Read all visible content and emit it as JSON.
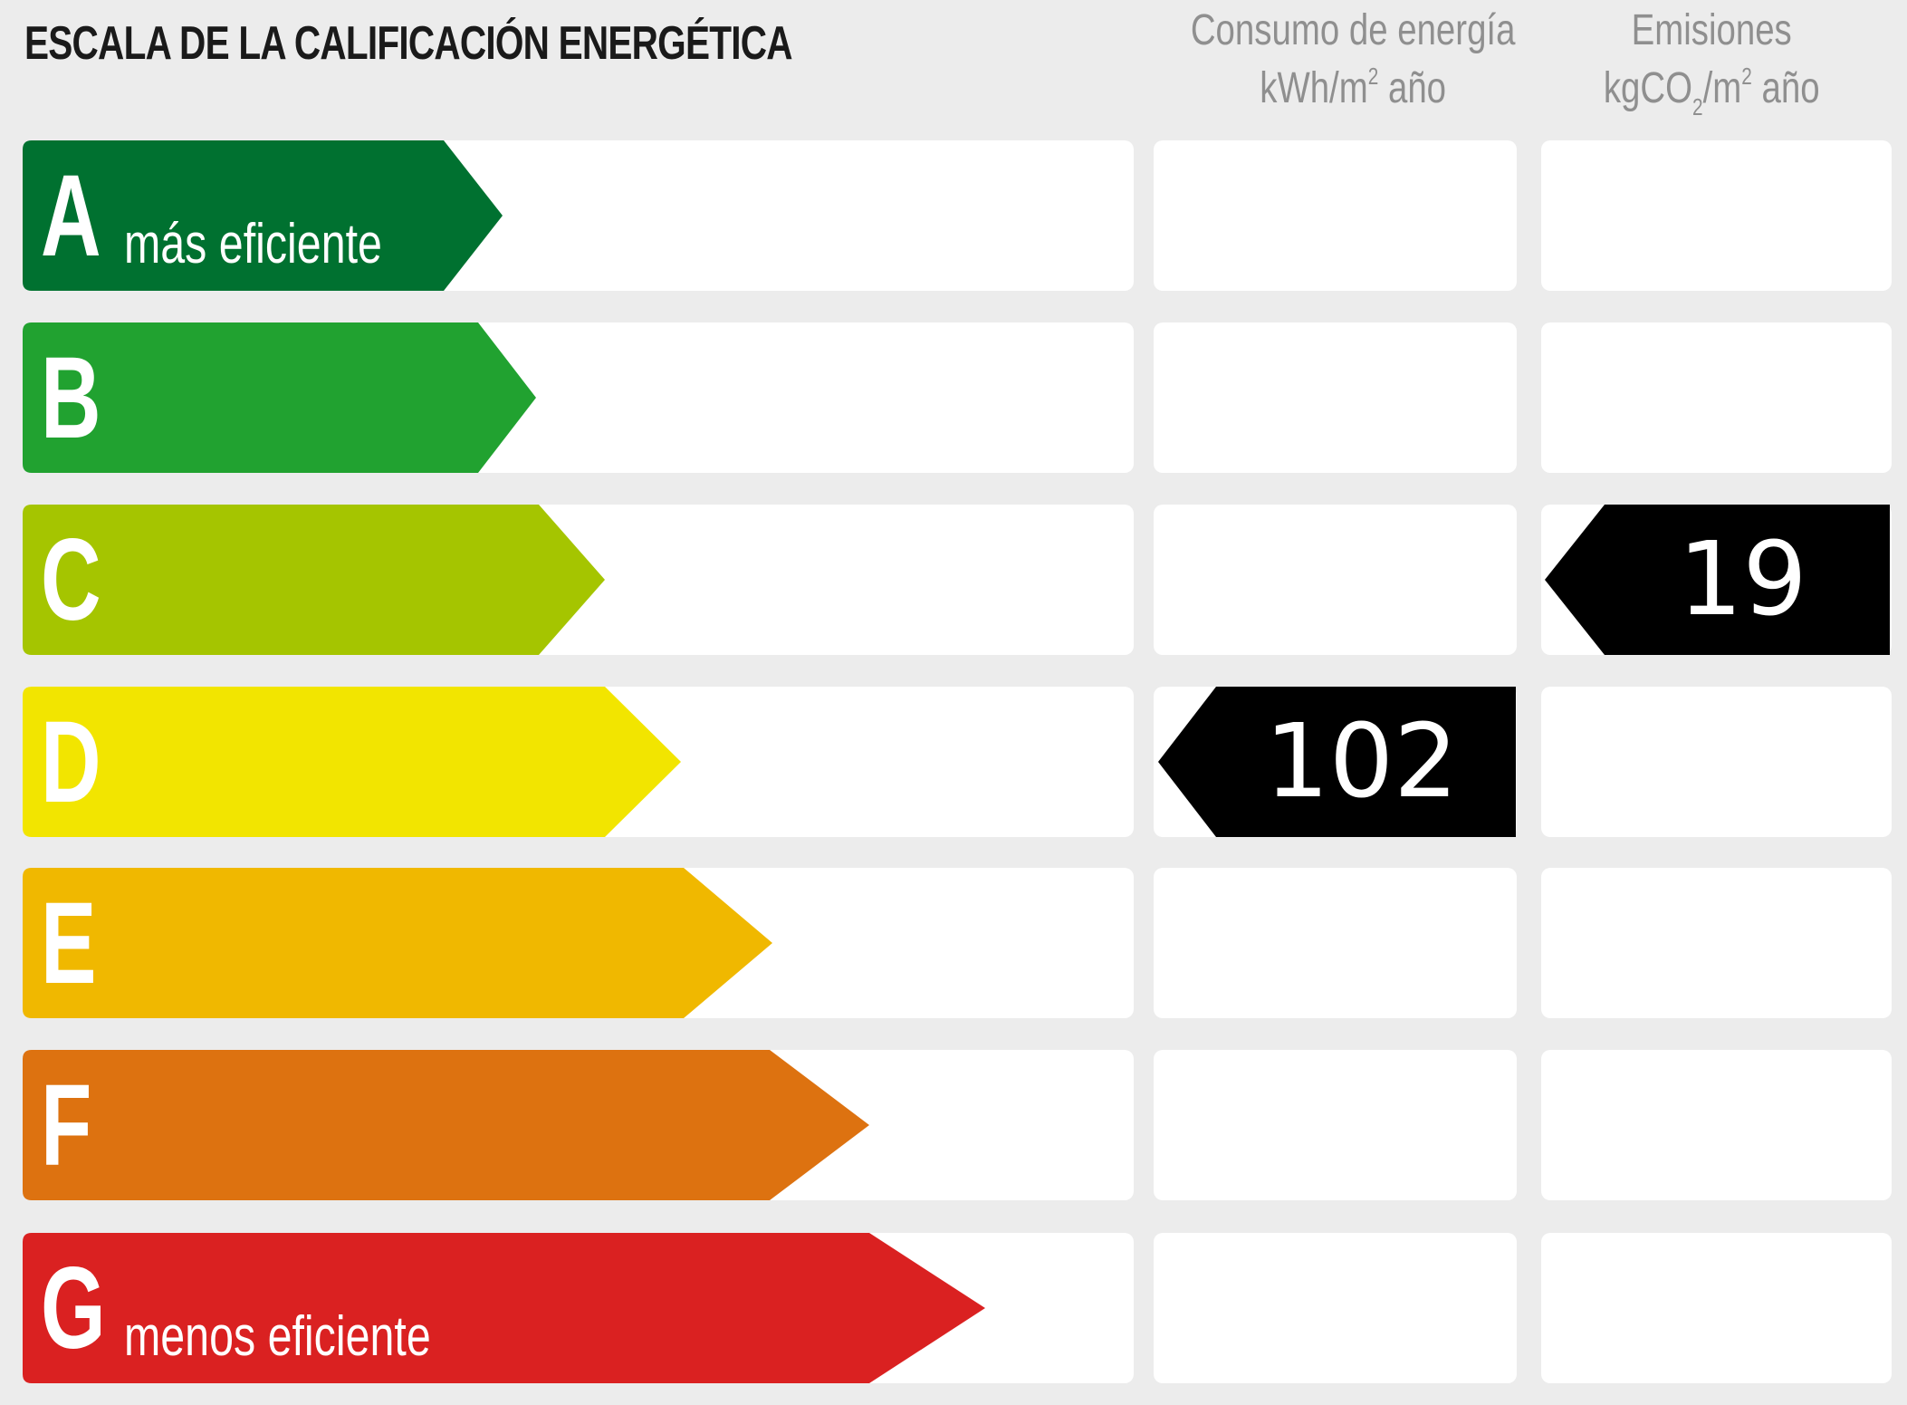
{
  "title": "ESCALA DE LA CALIFICACIÓN ENERGÉTICA",
  "columns": {
    "energy": {
      "line1": "Consumo de energía",
      "line2_pre": "kWh/m",
      "line2_sup": "2",
      "line2_post": " año"
    },
    "emissions": {
      "line1": "Emisiones",
      "line2_pre": "kgCO",
      "line2_sub": "2",
      "line2_mid": "/m",
      "line2_sup": "2",
      "line2_post": " año"
    }
  },
  "ratings": [
    {
      "letter": "A",
      "sublabel": "más eficiente",
      "color": "#007130"
    },
    {
      "letter": "B",
      "sublabel": "",
      "color": "#21a230"
    },
    {
      "letter": "C",
      "sublabel": "",
      "color": "#a5c500"
    },
    {
      "letter": "D",
      "sublabel": "",
      "color": "#f2e500"
    },
    {
      "letter": "E",
      "sublabel": "",
      "color": "#f0b800"
    },
    {
      "letter": "F",
      "sublabel": "",
      "color": "#dd7210"
    },
    {
      "letter": "G",
      "sublabel": "menos eficiente",
      "color": "#da2121"
    }
  ],
  "energy_indicator": {
    "value": "102",
    "rating": "D"
  },
  "emissions_indicator": {
    "value": "19",
    "rating": "C"
  },
  "chart_data": {
    "type": "table",
    "title": "ESCALA DE LA CALIFICACIÓN ENERGÉTICA",
    "categories": [
      "A",
      "B",
      "C",
      "D",
      "E",
      "F",
      "G"
    ],
    "scale_labels": {
      "A": "más eficiente",
      "G": "menos eficiente"
    },
    "series": [
      {
        "name": "Consumo de energía (kWh/m² año)",
        "value": 102,
        "rating": "D"
      },
      {
        "name": "Emisiones (kgCO2/m² año)",
        "value": 19,
        "rating": "C"
      }
    ],
    "colors": [
      "#007130",
      "#21a230",
      "#a5c500",
      "#f2e500",
      "#f0b800",
      "#dd7210",
      "#da2121"
    ]
  }
}
